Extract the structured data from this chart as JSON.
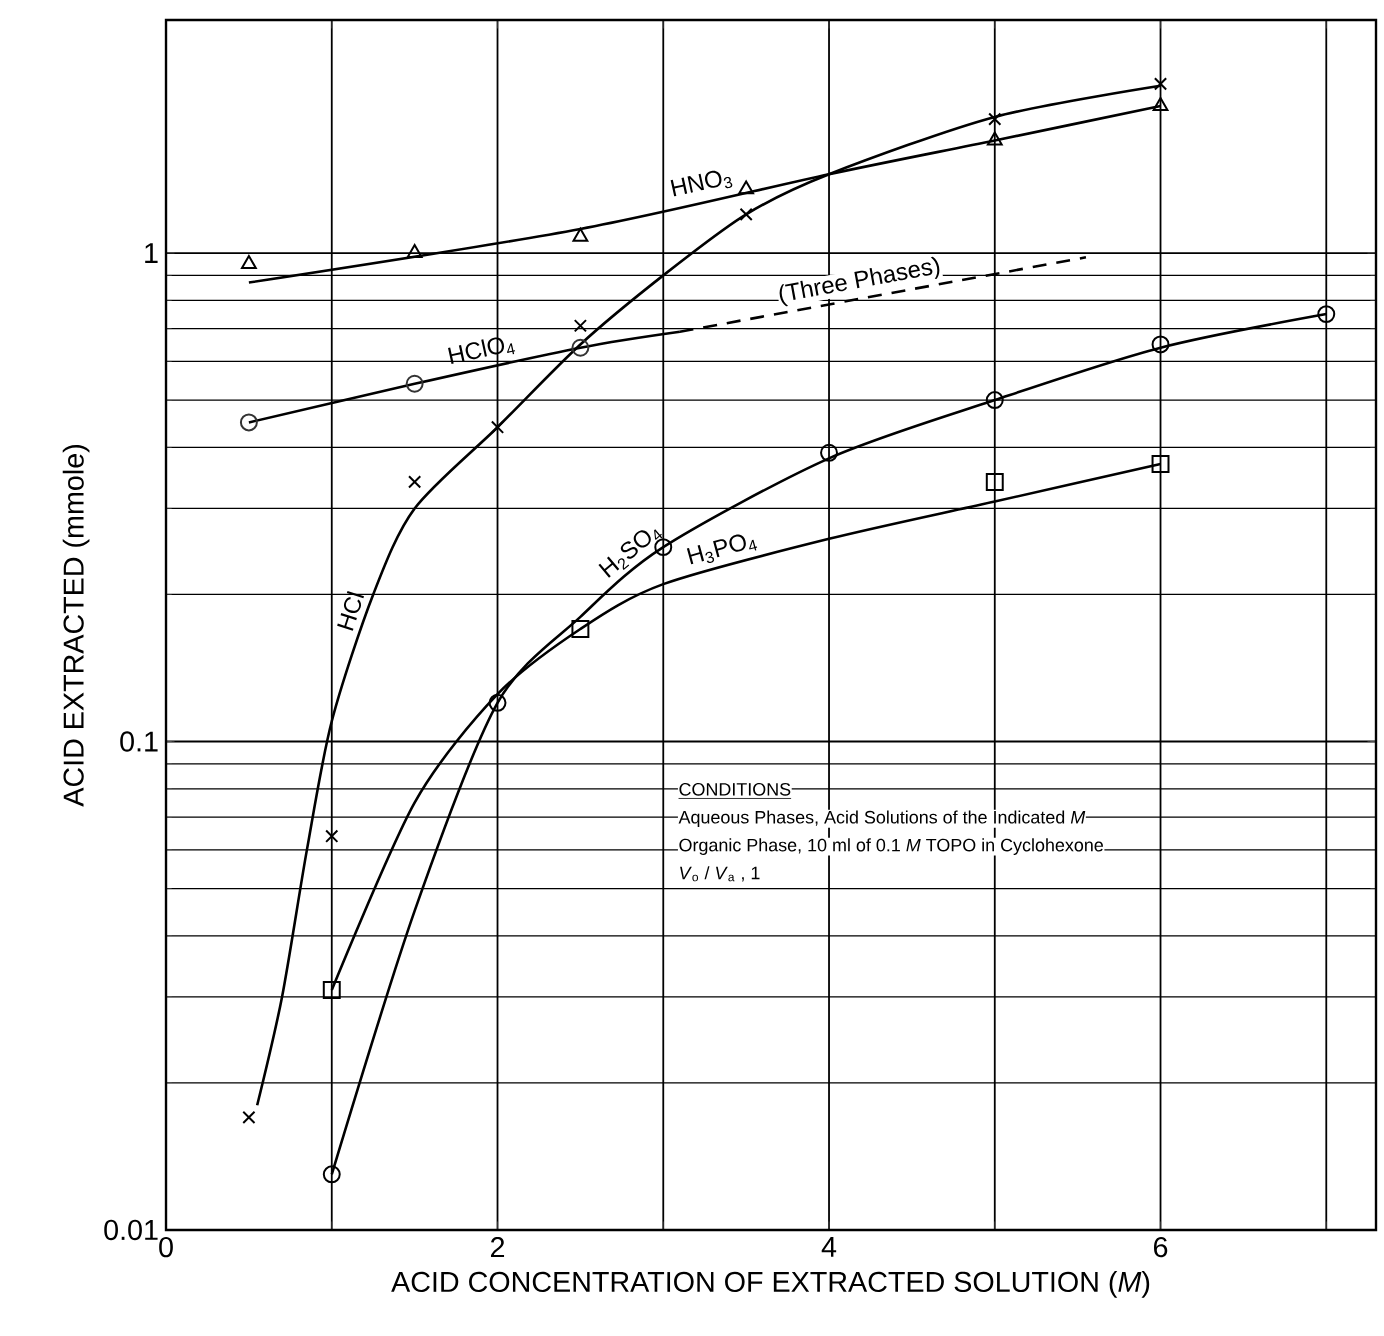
{
  "chart_data": {
    "type": "line",
    "xlabel": "ACID CONCENTRATION OF EXTRACTED SOLUTION (*M*)",
    "ylabel": "ACID EXTRACTED (mmole)",
    "xlim": [
      0,
      7.3
    ],
    "xticks": [
      0,
      {
        "value": 1,
        "label": null
      },
      2,
      {
        "value": 3,
        "label": null
      },
      4,
      {
        "value": 5,
        "label": null
      },
      6,
      {
        "value": 7,
        "label": null
      }
    ],
    "ylim": [
      0.01,
      3
    ],
    "yticks": [
      0.01,
      0.1,
      1
    ],
    "log": "y",
    "grid": true,
    "marker": "none",
    "line_style": "solid",
    "series": [
      {
        "name": "HNO$_{3}$",
        "color": "#000000",
        "x": [
          0.5,
          2.5,
          4,
          5,
          6
        ],
        "values": [
          0.87,
          1.12,
          1.45,
          1.7,
          2.0
        ]
      },
      {
        "type": "scatter",
        "marker": "triangle",
        "color": "#000000",
        "x": [
          0.5,
          1.5,
          2.5,
          3.5,
          5,
          6
        ],
        "values": [
          0.95,
          1.0,
          1.08,
          1.35,
          1.7,
          2.0
        ]
      },
      {
        "name": "HCl",
        "color": "#000000",
        "x": [
          0.55,
          0.7,
          0.85,
          1,
          1.25,
          1.5,
          2,
          2.5,
          3,
          3.5,
          4,
          5,
          6
        ],
        "values": [
          0.018,
          0.03,
          0.06,
          0.11,
          0.2,
          0.3,
          0.44,
          0.65,
          0.9,
          1.2,
          1.45,
          1.9,
          2.2
        ]
      },
      {
        "type": "scatter",
        "marker": "cross",
        "color": "#000000",
        "x": [
          0.5,
          1,
          1.5,
          2,
          2.5,
          3.5,
          5,
          6
        ],
        "values": [
          0.017,
          0.064,
          0.34,
          0.44,
          0.71,
          1.2,
          1.88,
          2.22
        ]
      },
      {
        "name": "HClO$_{4}$",
        "color": "#000000",
        "x": [
          0.5,
          1.5,
          2.5,
          3.1
        ],
        "values": [
          0.45,
          0.54,
          0.64,
          0.69
        ]
      },
      {
        "line_style": "dashed",
        "color": "#000000",
        "x": [
          3.1,
          5.55
        ],
        "values": [
          0.69,
          0.98
        ]
      },
      {
        "type": "scatter",
        "marker": "circle",
        "color": "#333333",
        "x": [
          0.5,
          1.5,
          2.5
        ],
        "values": [
          0.45,
          0.54,
          0.64
        ]
      },
      {
        "name": "H$_{2}$SO$_{4}$",
        "color": "#000000",
        "x": [
          1,
          1.5,
          2,
          2.5,
          3,
          4,
          5,
          6,
          7
        ],
        "values": [
          0.013,
          0.045,
          0.12,
          0.18,
          0.25,
          0.38,
          0.5,
          0.64,
          0.75
        ]
      },
      {
        "type": "scatter",
        "marker": "circle",
        "color": "#000000",
        "x": [
          1,
          2,
          3,
          4,
          5,
          6,
          7
        ],
        "values": [
          0.013,
          0.12,
          0.25,
          0.39,
          0.5,
          0.65,
          0.75
        ]
      },
      {
        "name": "H$_{3}$PO$_{4}$",
        "color": "#000000",
        "x": [
          1,
          1.5,
          2,
          2.5,
          3,
          4,
          5,
          6
        ],
        "values": [
          0.031,
          0.075,
          0.125,
          0.17,
          0.21,
          0.26,
          0.31,
          0.37
        ]
      },
      {
        "type": "scatter",
        "marker": "square",
        "color": "#000000",
        "x": [
          1,
          2.5,
          5,
          6
        ],
        "values": [
          0.031,
          0.17,
          0.34,
          0.37
        ]
      }
    ],
    "annotations": [
      "(Three Phases)",
      "CONDITIONS",
      "Aqueous Phases, Acid Solutions of the Indicated *M*",
      "Organic Phase, 10 ml of 0.1 *M* TOPO in Cyclohexone",
      "*V*$_{o}$ / *V*$_{a}$ , 1"
    ]
  }
}
